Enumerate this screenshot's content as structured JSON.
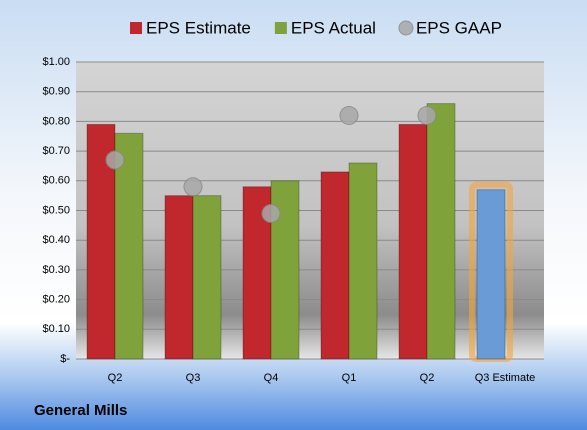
{
  "chart_data": {
    "type": "bar",
    "title": "General Mills",
    "categories": [
      "Q2",
      "Q3",
      "Q4",
      "Q1",
      "Q2",
      "Q3 Estimate"
    ],
    "series": [
      {
        "name": "EPS Estimate",
        "color": "#c0282d",
        "colors": [
          "#c0282d",
          "#c0282d",
          "#c0282d",
          "#c0282d",
          "#c0282d",
          "#6a9bd6"
        ],
        "values": [
          0.79,
          0.55,
          0.58,
          0.63,
          0.79,
          0.57
        ]
      },
      {
        "name": "EPS Actual",
        "color": "#7fa33a",
        "values": [
          0.76,
          0.55,
          0.6,
          0.66,
          0.86,
          null
        ]
      },
      {
        "name": "EPS GAAP",
        "color": "#a8a8a8",
        "marker": "circle",
        "values": [
          0.67,
          0.58,
          0.49,
          0.82,
          0.82,
          null
        ]
      }
    ],
    "ylim": [
      0,
      1
    ],
    "yticks": [
      {
        "value": 0,
        "label": "$-"
      },
      {
        "value": 0.1,
        "label": "$0.10"
      },
      {
        "value": 0.2,
        "label": "$0.20"
      },
      {
        "value": 0.3,
        "label": "$0.30"
      },
      {
        "value": 0.4,
        "label": "$0.40"
      },
      {
        "value": 0.5,
        "label": "$0.50"
      },
      {
        "value": 0.6,
        "label": "$0.60"
      },
      {
        "value": 0.7,
        "label": "$0.70"
      },
      {
        "value": 0.8,
        "label": "$0.80"
      },
      {
        "value": 0.9,
        "label": "$0.90"
      },
      {
        "value": 1,
        "label": "$1.00"
      }
    ],
    "grid": true,
    "legend": "top"
  }
}
